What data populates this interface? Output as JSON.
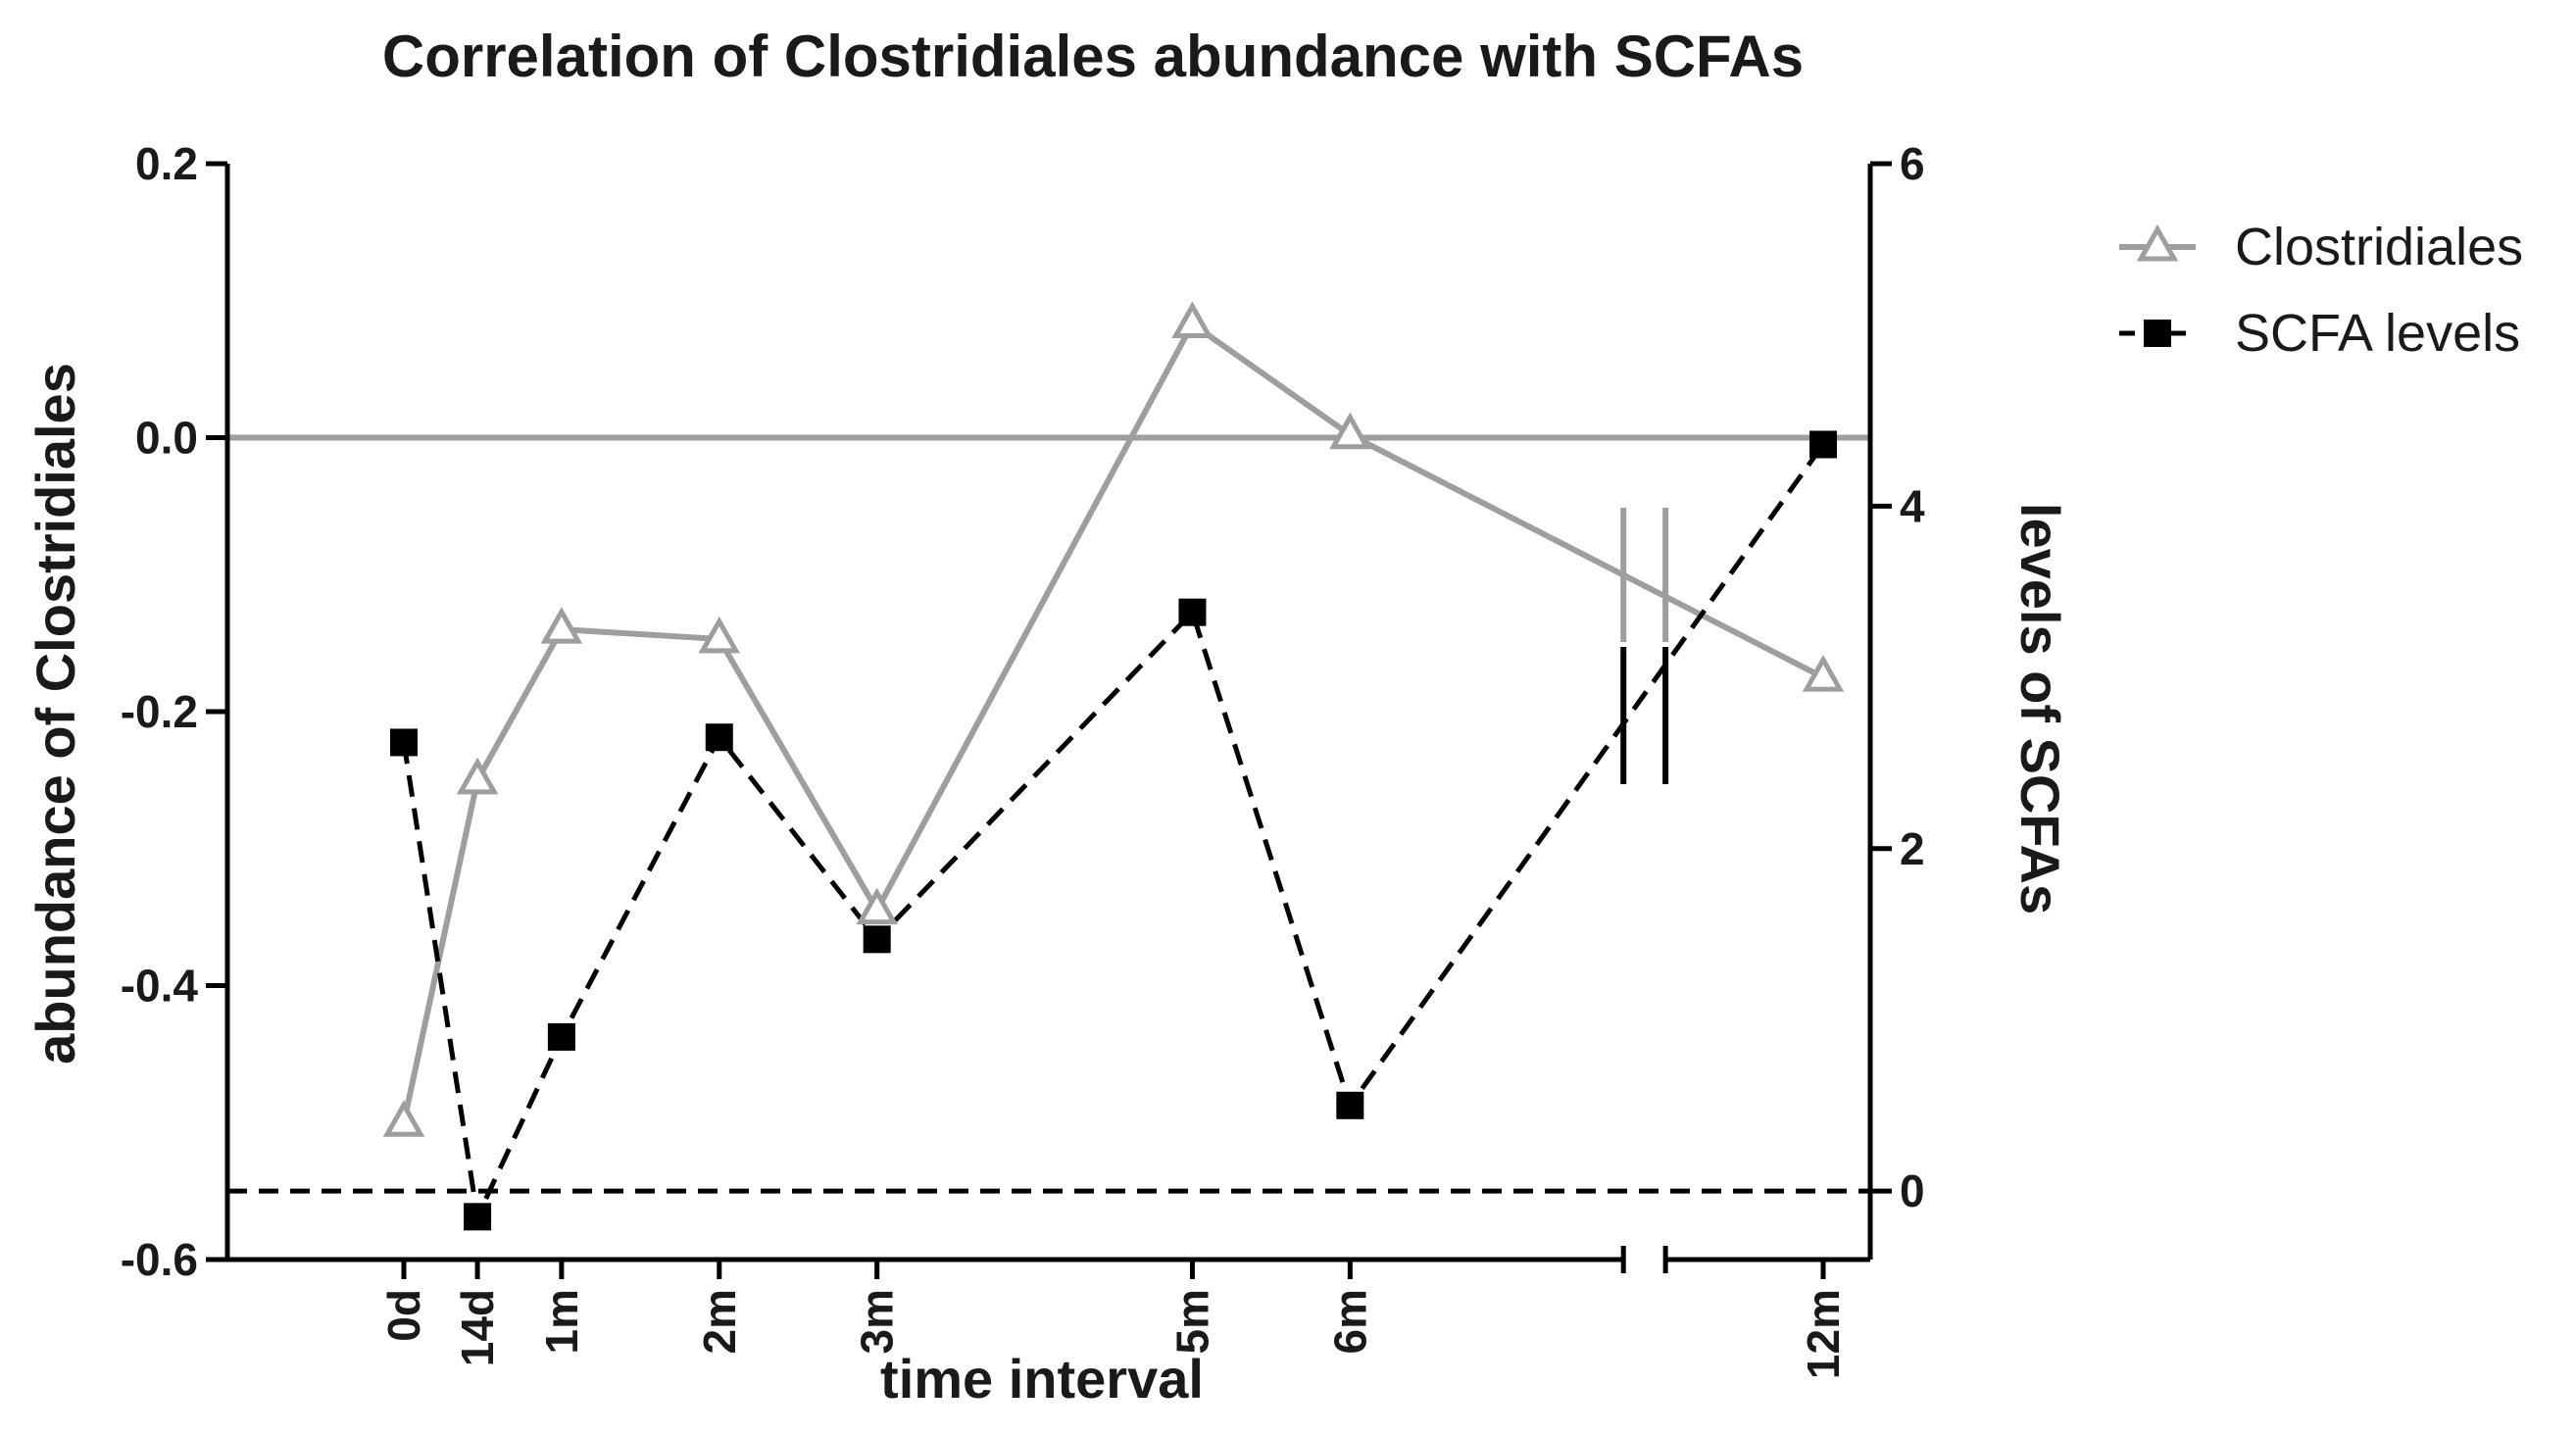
{
  "chart_data": {
    "type": "line",
    "title": "Correlation of Clostridiales abundance with SCFAs",
    "xlabel": "time interval",
    "ylabel": "abundance of Clostridiales",
    "y2label": "levels of SCFAs",
    "categories": [
      "0d",
      "14d",
      "1m",
      "2m",
      "3m",
      "5m",
      "6m",
      "12m"
    ],
    "x": [
      0,
      14,
      30,
      60,
      90,
      150,
      180,
      270
    ],
    "x_axis_break": [
      232,
      240
    ],
    "ylim": [
      -0.6,
      0.2
    ],
    "y_ticks": [
      0.2,
      0.0,
      -0.2,
      -0.4,
      -0.6
    ],
    "y_tick_labels": [
      "0.2",
      "0.0",
      "-0.2",
      "-0.4",
      "-0.6"
    ],
    "y2lim": [
      -0.4,
      6
    ],
    "y2_ticks": [
      6,
      4,
      2,
      0
    ],
    "y2_tick_labels": [
      "6",
      "4",
      "2",
      "0"
    ],
    "reference_lines": [
      {
        "axis": "left",
        "value": 0.0,
        "color": "#9e9e9e",
        "style": "solid"
      },
      {
        "axis": "right",
        "value": 0,
        "color": "#000000",
        "style": "dashed"
      }
    ],
    "series": [
      {
        "name": "Clostridiales",
        "axis": "left",
        "color": "#9e9e9e",
        "line": "solid",
        "marker": "open-triangle",
        "values": [
          -0.5,
          -0.25,
          -0.14,
          -0.147,
          -0.345,
          0.083,
          0.002,
          -0.175
        ]
      },
      {
        "name": "SCFA levels",
        "axis": "right",
        "color": "#000000",
        "line": "dashed",
        "marker": "filled-square",
        "values": [
          2.62,
          -0.15,
          0.9,
          2.65,
          1.47,
          3.38,
          0.5,
          4.36
        ]
      }
    ],
    "legend": {
      "position": "top-right",
      "entries": [
        "Clostridiales",
        "SCFA levels"
      ]
    }
  }
}
